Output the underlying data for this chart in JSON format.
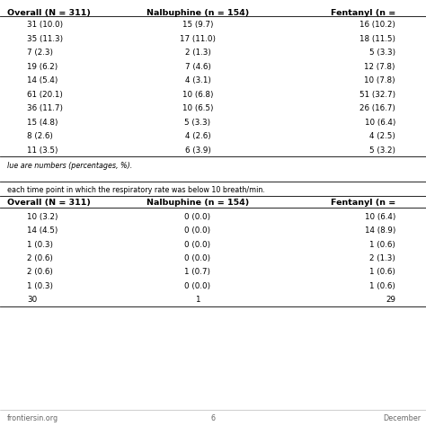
{
  "background_color": "#ffffff",
  "footer_left": "frontiersin.org",
  "footer_center": "6",
  "footer_right": "December",
  "table1_headers": [
    "Overall (N = 311)",
    "Nalbuphine (n = 154)",
    "Fentanyl (n ="
  ],
  "table1_rows": [
    [
      "31 (10.0)",
      "15 (9.7)",
      "16 (10.2)"
    ],
    [
      "35 (11.3)",
      "17 (11.0)",
      "18 (11.5)"
    ],
    [
      "7 (2.3)",
      "2 (1.3)",
      "5 (3.3)"
    ],
    [
      "19 (6.2)",
      "7 (4.6)",
      "12 (7.8)"
    ],
    [
      "14 (5.4)",
      "4 (3.1)",
      "10 (7.8)"
    ],
    [
      "61 (20.1)",
      "10 (6.8)",
      "51 (32.7)"
    ],
    [
      "36 (11.7)",
      "10 (6.5)",
      "26 (16.7)"
    ],
    [
      "15 (4.8)",
      "5 (3.3)",
      "10 (6.4)"
    ],
    [
      "8 (2.6)",
      "4 (2.6)",
      "4 (2.5)"
    ],
    [
      "11 (3.5)",
      "6 (3.9)",
      "5 (3.2)"
    ]
  ],
  "footnote1": "lue are numbers (percentages, %).",
  "separator_text": "each time point in which the respiratory rate was below 10 breath/min.",
  "table2_headers": [
    "Overall (N = 311)",
    "Nalbuphine (n = 154)",
    "Fentanyl (n ="
  ],
  "table2_rows": [
    [
      "10 (3.2)",
      "0 (0.0)",
      "10 (6.4)"
    ],
    [
      "14 (4.5)",
      "0 (0.0)",
      "14 (8.9)"
    ],
    [
      "1 (0.3)",
      "0 (0.0)",
      "1 (0.6)"
    ],
    [
      "2 (0.6)",
      "0 (0.0)",
      "2 (1.3)"
    ],
    [
      "2 (0.6)",
      "1 (0.7)",
      "1 (0.6)"
    ],
    [
      "1 (0.3)",
      "0 (0.0)",
      "1 (0.6)"
    ],
    [
      "30",
      "1",
      "29"
    ]
  ]
}
